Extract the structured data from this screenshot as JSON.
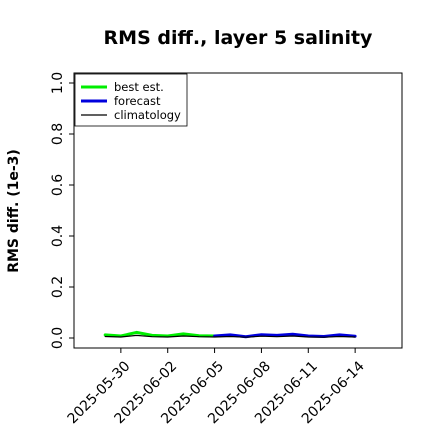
{
  "chart_data": {
    "type": "line",
    "title": "RMS diff., layer 5 salinity",
    "xlabel": "",
    "ylabel": "RMS diff. (1e-3)",
    "ylim": [
      0,
      1.0
    ],
    "y_ticks": [
      "0.0",
      "0.2",
      "0.4",
      "0.6",
      "0.8",
      "1.0"
    ],
    "x_range": [
      "2025-05-27",
      "2025-06-17"
    ],
    "x_ticks": [
      {
        "date": "2025-05-30",
        "label": "2025-05-30",
        "color": "#000000"
      },
      {
        "date": "2025-06-02",
        "label": "2025-06-02",
        "color": "#000000"
      },
      {
        "date": "2025-06-05",
        "label": "2025-06-05",
        "color": "#228b22"
      },
      {
        "date": "2025-06-08",
        "label": "2025-06-08",
        "color": "#000000"
      },
      {
        "date": "2025-06-11",
        "label": "2025-06-11",
        "color": "#000000"
      },
      {
        "date": "2025-06-14",
        "label": "2025-06-14",
        "color": "#000000"
      }
    ],
    "grid": false,
    "legend_position": "top-left",
    "series": [
      {
        "name": "best est.",
        "color": "#00ee00",
        "width": 3,
        "x": [
          "2025-05-29",
          "2025-05-30",
          "2025-05-31",
          "2025-06-01",
          "2025-06-02",
          "2025-06-03",
          "2025-06-04",
          "2025-06-05"
        ],
        "y": [
          0.012,
          0.008,
          0.022,
          0.01,
          0.008,
          0.016,
          0.009,
          0.008
        ]
      },
      {
        "name": "forecast",
        "color": "#0000dd",
        "width": 3,
        "x": [
          "2025-06-05",
          "2025-06-06",
          "2025-06-07",
          "2025-06-08",
          "2025-06-09",
          "2025-06-10",
          "2025-06-11",
          "2025-06-12",
          "2025-06-13",
          "2025-06-14"
        ],
        "y": [
          0.008,
          0.012,
          0.005,
          0.013,
          0.01,
          0.015,
          0.008,
          0.006,
          0.012,
          0.007
        ]
      },
      {
        "name": "climatology",
        "color": "#000000",
        "width": 1.2,
        "x": [
          "2025-05-29",
          "2025-05-30",
          "2025-05-31",
          "2025-06-01",
          "2025-06-02",
          "2025-06-03",
          "2025-06-04",
          "2025-06-05",
          "2025-06-06",
          "2025-06-07",
          "2025-06-08",
          "2025-06-09",
          "2025-06-10",
          "2025-06-11",
          "2025-06-12",
          "2025-06-13",
          "2025-06-14"
        ],
        "y": [
          0.006,
          0.004,
          0.01,
          0.005,
          0.004,
          0.008,
          0.005,
          0.004,
          0.006,
          0.003,
          0.007,
          0.005,
          0.008,
          0.004,
          0.003,
          0.006,
          0.004
        ]
      }
    ]
  }
}
